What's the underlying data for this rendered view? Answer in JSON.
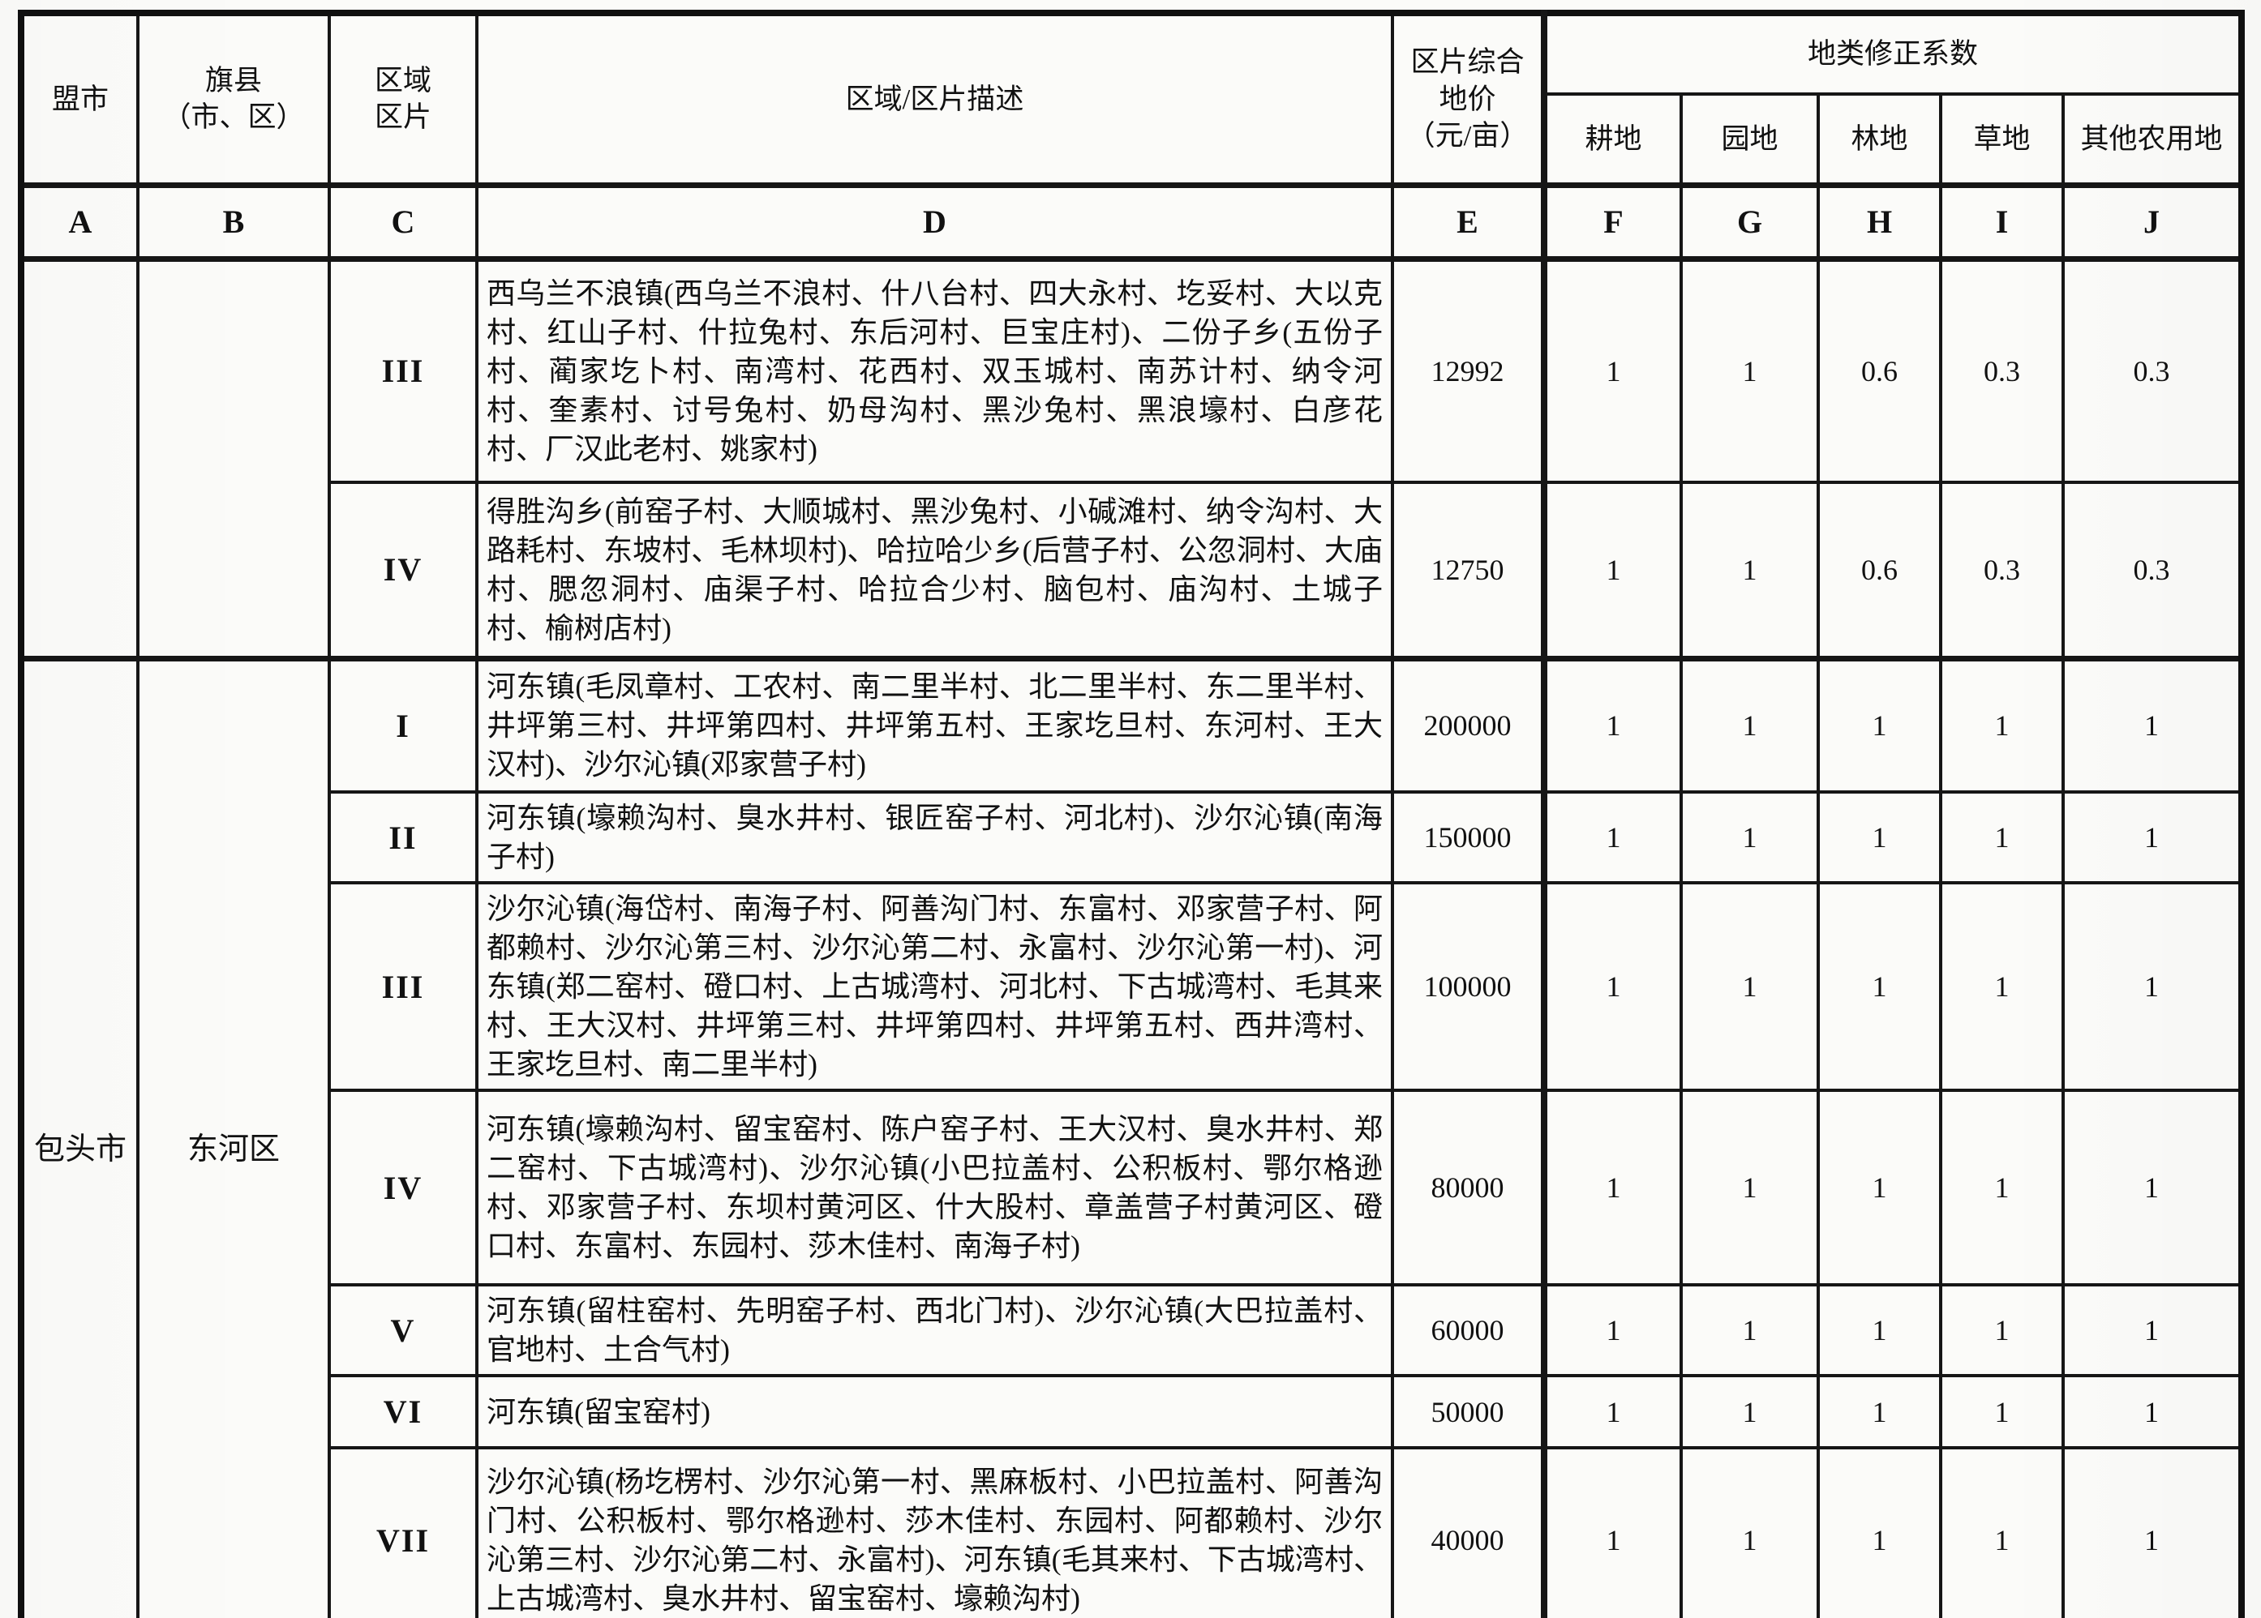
{
  "document": {
    "columns_letters": [
      "A",
      "B",
      "C",
      "D",
      "E",
      "F",
      "G",
      "H",
      "I",
      "J"
    ],
    "header": {
      "league_city": "盟市",
      "banner_county": "旗县\n（市、区）",
      "zone": "区域\n区片",
      "description": "区域/区片描述",
      "price": "区片综合\n地价\n（元/亩）",
      "coefficient_group": "地类修正系数",
      "land_types": [
        "耕地",
        "园地",
        "林地",
        "草地",
        "其他农用地"
      ]
    },
    "groups": [
      {
        "city": "",
        "county": "",
        "rows": [
          {
            "zone": "III",
            "desc": "西乌兰不浪镇(西乌兰不浪村、什八台村、四大永村、圪妥村、大以克村、红山子村、什拉兔村、东后河村、巨宝庄村)、二份子乡(五份子村、蔺家圪卜村、南湾村、花西村、双玉城村、南苏计村、纳令河村、奎素村、讨号兔村、奶母沟村、黑沙兔村、黑浪壕村、白彦花村、厂汉此老村、姚家村)",
            "price": "12992",
            "coefs": [
              "1",
              "1",
              "0.6",
              "0.3",
              "0.3"
            ]
          },
          {
            "zone": "IV",
            "desc": "得胜沟乡(前窑子村、大顺城村、黑沙兔村、小碱滩村、纳令沟村、大路耗村、东坡村、毛林坝村)、哈拉哈少乡(后营子村、公忽洞村、大庙村、腮忽洞村、庙渠子村、哈拉合少村、脑包村、庙沟村、土城子村、榆树店村)",
            "price": "12750",
            "coefs": [
              "1",
              "1",
              "0.6",
              "0.3",
              "0.3"
            ]
          }
        ]
      },
      {
        "city": "包头市",
        "county": "东河区",
        "rows": [
          {
            "zone": "I",
            "desc": "河东镇(毛凤章村、工农村、南二里半村、北二里半村、东二里半村、井坪第三村、井坪第四村、井坪第五村、王家圪旦村、东河村、王大汉村)、沙尔沁镇(邓家营子村)",
            "price": "200000",
            "coefs": [
              "1",
              "1",
              "1",
              "1",
              "1"
            ]
          },
          {
            "zone": "II",
            "desc": "河东镇(壕赖沟村、臭水井村、银匠窑子村、河北村)、沙尔沁镇(南海子村)",
            "price": "150000",
            "coefs": [
              "1",
              "1",
              "1",
              "1",
              "1"
            ]
          },
          {
            "zone": "III",
            "desc": "沙尔沁镇(海岱村、南海子村、阿善沟门村、东富村、邓家营子村、阿都赖村、沙尔沁第三村、沙尔沁第二村、永富村、沙尔沁第一村)、河东镇(郑二窑村、磴口村、上古城湾村、河北村、下古城湾村、毛其来村、王大汉村、井坪第三村、井坪第四村、井坪第五村、西井湾村、王家圪旦村、南二里半村)",
            "price": "100000",
            "coefs": [
              "1",
              "1",
              "1",
              "1",
              "1"
            ]
          },
          {
            "zone": "IV",
            "desc": "河东镇(壕赖沟村、留宝窑村、陈户窑子村、王大汉村、臭水井村、郑二窑村、下古城湾村)、沙尔沁镇(小巴拉盖村、公积板村、鄂尔格逊村、邓家营子村、东坝村黄河区、什大股村、章盖营子村黄河区、磴口村、东富村、东园村、莎木佳村、南海子村)",
            "price": "80000",
            "coefs": [
              "1",
              "1",
              "1",
              "1",
              "1"
            ]
          },
          {
            "zone": "V",
            "desc": "河东镇(留柱窑村、先明窑子村、西北门村)、沙尔沁镇(大巴拉盖村、官地村、土合气村)",
            "price": "60000",
            "coefs": [
              "1",
              "1",
              "1",
              "1",
              "1"
            ]
          },
          {
            "zone": "VI",
            "desc": "河东镇(留宝窑村)",
            "price": "50000",
            "coefs": [
              "1",
              "1",
              "1",
              "1",
              "1"
            ]
          },
          {
            "zone": "VII",
            "desc": "沙尔沁镇(杨圪楞村、沙尔沁第一村、黑麻板村、小巴拉盖村、阿善沟门村、公积板村、鄂尔格逊村、莎木佳村、东园村、阿都赖村、沙尔沁第三村、沙尔沁第二村、永富村)、河东镇(毛其来村、下古城湾村、上古城湾村、臭水井村、留宝窑村、壕赖沟村)",
            "price": "40000",
            "coefs": [
              "1",
              "1",
              "1",
              "1",
              "1"
            ]
          }
        ]
      }
    ]
  }
}
